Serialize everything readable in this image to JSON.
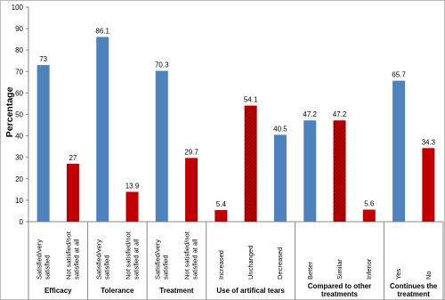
{
  "chart_data": {
    "type": "bar",
    "y_label": "Percentage",
    "ylim": [
      0,
      100
    ],
    "yticks": [
      0,
      10,
      20,
      30,
      40,
      50,
      60,
      70,
      80,
      90,
      100
    ],
    "groups": [
      {
        "name": "Efficacy",
        "categories": [
          "Satisfied/very satisfied",
          "Not satisfied/not satisfied at all"
        ],
        "values": [
          73,
          27
        ],
        "colors": [
          "#4f81bd",
          "#c00000"
        ],
        "hatched": [
          false,
          false
        ]
      },
      {
        "name": "Tolerance",
        "categories": [
          "Satisfied/very satisfied",
          "Not satisfied/not satisfied at all"
        ],
        "values": [
          86.1,
          13.9
        ],
        "colors": [
          "#4f81bd",
          "#c00000"
        ],
        "hatched": [
          false,
          false
        ]
      },
      {
        "name": "Treatment",
        "categories": [
          "Satisfied/very satisfied",
          "Not satisfied/not satisfied at all"
        ],
        "values": [
          70.3,
          29.7
        ],
        "colors": [
          "#4f81bd",
          "#c00000"
        ],
        "hatched": [
          false,
          false
        ]
      },
      {
        "name": "Use of artifical tears",
        "categories": [
          "Increased",
          "Unchanged",
          "Decreased"
        ],
        "values": [
          5.4,
          54.1,
          40.5
        ],
        "colors": [
          "#c00000",
          "#c00000",
          "#4f81bd"
        ],
        "hatched": [
          false,
          true,
          false
        ]
      },
      {
        "name": "Compared to other treatments",
        "categories": [
          "Better",
          "Similar",
          "Inferior"
        ],
        "values": [
          47.2,
          47.2,
          5.6
        ],
        "colors": [
          "#4f81bd",
          "#c00000",
          "#c00000"
        ],
        "hatched": [
          false,
          true,
          false
        ]
      },
      {
        "name": "Continues the treatment",
        "categories": [
          "Yes",
          "No"
        ],
        "values": [
          65.7,
          34.3
        ],
        "colors": [
          "#4f81bd",
          "#c00000"
        ],
        "hatched": [
          false,
          false
        ]
      }
    ]
  }
}
